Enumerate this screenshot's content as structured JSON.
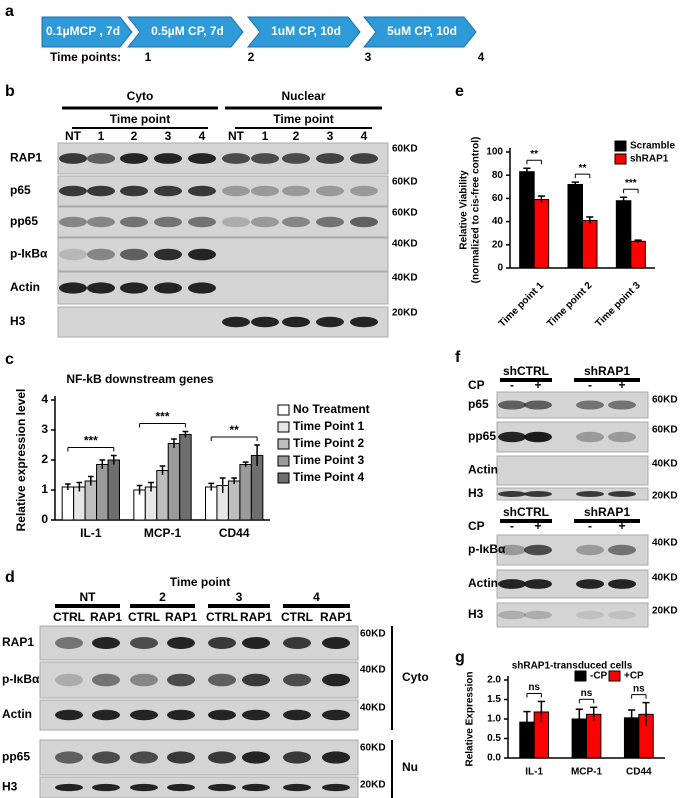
{
  "panel_labels": [
    "a",
    "b",
    "c",
    "d",
    "e",
    "f",
    "g"
  ],
  "panel_a": {
    "steps": [
      "0.1µMCP , 7d",
      "0.5µM CP, 7d",
      "1uM CP, 10d",
      "5uM CP, 10d"
    ],
    "points_label": "Time points:",
    "points": [
      "1",
      "2",
      "3",
      "4"
    ]
  },
  "panel_b": {
    "groups": [
      {
        "name": "Cyto",
        "subtitle": "Time point",
        "lanes": [
          "NT",
          "1",
          "2",
          "3",
          "4"
        ]
      },
      {
        "name": "Nuclear",
        "subtitle": "Time point",
        "lanes": [
          "NT",
          "1",
          "2",
          "3",
          "4"
        ]
      }
    ],
    "rows": [
      {
        "name": "RAP1",
        "size": "60KD"
      },
      {
        "name": "p65",
        "size": "60KD"
      },
      {
        "name": "pp65",
        "size": "60KD"
      },
      {
        "name": "p-IκBα",
        "size": "40KD"
      },
      {
        "name": "Actin",
        "size": "40KD"
      },
      {
        "name": "H3",
        "size": "20KD"
      }
    ]
  },
  "panel_d": {
    "title": "Time point",
    "groups": [
      {
        "name": "NT",
        "lanes": [
          "CTRL",
          "RAP1"
        ]
      },
      {
        "name": "2",
        "lanes": [
          "CTRL",
          "RAP1"
        ]
      },
      {
        "name": "3",
        "lanes": [
          "CTRL",
          "RAP1"
        ]
      },
      {
        "name": "4",
        "lanes": [
          "CTRL",
          "RAP1"
        ]
      }
    ],
    "rows": [
      {
        "name": "RAP1",
        "size": "60KD"
      },
      {
        "name": "p-IκBα",
        "size": "40KD"
      },
      {
        "name": "Actin",
        "size": "40KD"
      },
      {
        "name": "pp65",
        "size": "60KD"
      },
      {
        "name": "H3",
        "size": "20KD"
      }
    ],
    "fractions": [
      "Cyto",
      "Nu"
    ]
  },
  "panel_f": {
    "blots": [
      {
        "groups": [
          "shCTRL",
          "shRAP1"
        ],
        "treatment": "CP",
        "lanes": [
          "-",
          "+",
          "-",
          "+"
        ],
        "rows": [
          {
            "name": "p65",
            "size": "60KD"
          },
          {
            "name": "pp65",
            "size": "60KD"
          },
          {
            "name": "Actin",
            "size": "40KD"
          },
          {
            "name": "H3",
            "size": "20KD"
          }
        ]
      },
      {
        "groups": [
          "shCTRL",
          "shRAP1"
        ],
        "treatment": "CP",
        "lanes": [
          "-",
          "+",
          "-",
          "+"
        ],
        "rows": [
          {
            "name": "p-IκBα",
            "size": "40KD"
          },
          {
            "name": "Actin",
            "size": "40KD"
          },
          {
            "name": "H3",
            "size": "20KD"
          }
        ]
      }
    ]
  },
  "chart_data": [
    {
      "type": "bar",
      "title": "NF-kB downstream genes",
      "ylabel": [
        "Relative expression level"
      ],
      "categories": [
        "IL-1",
        "MCP-1",
        "CD44"
      ],
      "series": [
        {
          "name": "No Treatment",
          "color": "#ffffff",
          "values": [
            1.1,
            1.0,
            1.1
          ],
          "errors": [
            0.1,
            0.15,
            0.12
          ]
        },
        {
          "name": "Time Point 1",
          "color": "#e6e6e6",
          "values": [
            1.1,
            1.1,
            1.15
          ],
          "errors": [
            0.15,
            0.15,
            0.25
          ]
        },
        {
          "name": "Time Point 2",
          "color": "#bdbdbd",
          "values": [
            1.3,
            1.65,
            1.3
          ],
          "errors": [
            0.15,
            0.15,
            0.1
          ]
        },
        {
          "name": "Time Point 3",
          "color": "#9a9a9a",
          "values": [
            1.85,
            2.55,
            1.85
          ],
          "errors": [
            0.15,
            0.15,
            0.08
          ]
        },
        {
          "name": "Time Point 4",
          "color": "#6e6e6e",
          "values": [
            2.0,
            2.85,
            2.15
          ],
          "errors": [
            0.15,
            0.1,
            0.35
          ]
        }
      ],
      "annotations": [
        "***",
        "***",
        "**"
      ],
      "ylim": [
        0,
        4
      ],
      "yticks": [
        0,
        1,
        2,
        3,
        4
      ]
    },
    {
      "type": "bar",
      "ylabel": [
        "Relative Viability",
        "(normalized to cis-free control)"
      ],
      "categories": [
        "Time point 1",
        "Time point 2",
        "Time point 3"
      ],
      "series": [
        {
          "name": "Scramble",
          "color": "#000000",
          "values": [
            83,
            72,
            58
          ],
          "errors": [
            3,
            2,
            3
          ]
        },
        {
          "name": "shRAP1",
          "color": "#ff0000",
          "values": [
            59,
            41,
            23
          ],
          "errors": [
            3,
            3,
            1
          ]
        }
      ],
      "annotations": [
        "**",
        "**",
        "***"
      ],
      "ylim": [
        0,
        100
      ],
      "yticks": [
        0,
        20,
        40,
        60,
        80,
        100
      ]
    },
    {
      "type": "bar",
      "title": "shRAP1-transduced cells",
      "ylabel": [
        "Relative Expression"
      ],
      "categories": [
        "IL-1",
        "MCP-1",
        "CD44"
      ],
      "series": [
        {
          "name": "-CP",
          "color": "#000000",
          "values": [
            0.92,
            1.0,
            1.03
          ],
          "errors": [
            0.27,
            0.25,
            0.2
          ]
        },
        {
          "name": "+CP",
          "color": "#ff0000",
          "values": [
            1.18,
            1.12,
            1.12
          ],
          "errors": [
            0.27,
            0.18,
            0.3
          ]
        }
      ],
      "annotations": [
        "ns",
        "ns",
        "ns"
      ],
      "ylim": [
        0,
        2
      ],
      "yticks": [
        {
          "value": 0,
          "label": "0.0"
        },
        {
          "value": 0.5,
          "label": "0.5"
        },
        {
          "value": 1,
          "label": "1.0"
        },
        {
          "value": 1.5,
          "label": "1.5"
        },
        {
          "value": 2,
          "label": "2.0"
        }
      ]
    }
  ]
}
